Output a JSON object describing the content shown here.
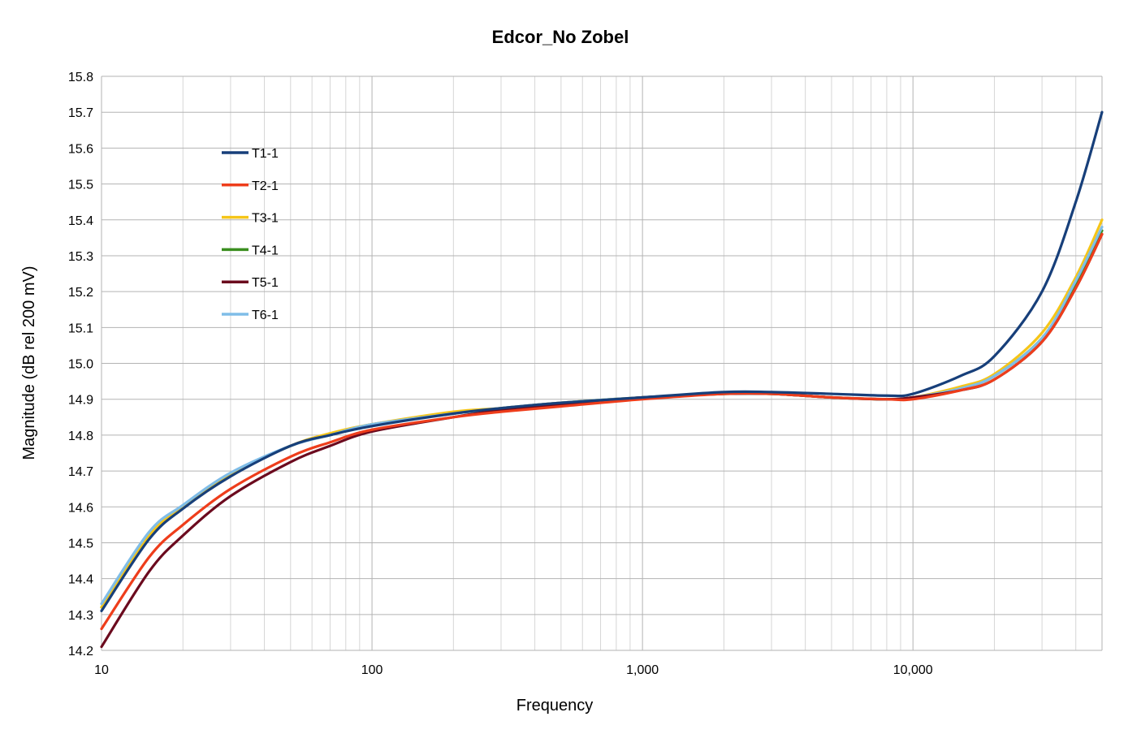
{
  "chart_data": {
    "type": "line",
    "title": "Edcor_No Zobel",
    "xlabel": "Frequency",
    "ylabel": "Magnitude (dB rel 200 mV)",
    "xscale": "log",
    "xlim": [
      10,
      50000
    ],
    "ylim": [
      14.2,
      15.8
    ],
    "x_ticks": [
      10,
      100,
      1000,
      10000
    ],
    "x_tick_labels": [
      "10",
      "100",
      "1,000",
      "10,000"
    ],
    "y_ticks": [
      14.2,
      14.3,
      14.4,
      14.5,
      14.6,
      14.7,
      14.8,
      14.9,
      15.0,
      15.1,
      15.2,
      15.3,
      15.4,
      15.5,
      15.6,
      15.7,
      15.8
    ],
    "y_tick_labels": [
      "14.2",
      "14.3",
      "14.4",
      "14.5",
      "14.6",
      "14.7",
      "14.8",
      "14.9",
      "15.0",
      "15.1",
      "15.2",
      "15.3",
      "15.4",
      "15.5",
      "15.6",
      "15.7",
      "15.8"
    ],
    "grid": true,
    "legend_position": "top-left",
    "x": [
      10,
      15,
      20,
      30,
      50,
      70,
      100,
      200,
      300,
      500,
      1000,
      2000,
      3000,
      5000,
      8000,
      10000,
      15000,
      20000,
      30000,
      40000,
      50000
    ],
    "series": [
      {
        "name": "T4-1",
        "color": "#3a8e1f",
        "values": [
          14.32,
          14.52,
          14.6,
          14.69,
          14.77,
          14.8,
          14.83,
          14.86,
          14.875,
          14.89,
          14.905,
          14.915,
          14.915,
          14.905,
          14.9,
          14.905,
          14.93,
          14.965,
          15.07,
          15.22,
          15.37
        ]
      },
      {
        "name": "T3-1",
        "color": "#f5c518",
        "values": [
          14.32,
          14.52,
          14.6,
          14.69,
          14.77,
          14.805,
          14.83,
          14.865,
          14.875,
          14.89,
          14.905,
          14.915,
          14.915,
          14.905,
          14.9,
          14.905,
          14.935,
          14.97,
          15.085,
          15.24,
          15.4
        ]
      },
      {
        "name": "T6-1",
        "color": "#7fbde8",
        "values": [
          14.33,
          14.53,
          14.605,
          14.695,
          14.77,
          14.8,
          14.83,
          14.86,
          14.875,
          14.89,
          14.905,
          14.915,
          14.915,
          14.905,
          14.9,
          14.905,
          14.93,
          14.965,
          15.07,
          15.23,
          15.38
        ]
      },
      {
        "name": "T5-1",
        "color": "#6b0a1e",
        "values": [
          14.21,
          14.42,
          14.52,
          14.63,
          14.725,
          14.77,
          14.81,
          14.85,
          14.87,
          14.885,
          14.905,
          14.915,
          14.915,
          14.905,
          14.9,
          14.905,
          14.925,
          14.955,
          15.06,
          15.21,
          15.36
        ]
      },
      {
        "name": "T2-1",
        "color": "#ee3d1b",
        "values": [
          14.26,
          14.46,
          14.55,
          14.65,
          14.74,
          14.78,
          14.815,
          14.85,
          14.865,
          14.88,
          14.9,
          14.915,
          14.915,
          14.905,
          14.9,
          14.9,
          14.925,
          14.955,
          15.06,
          15.21,
          15.36
        ]
      },
      {
        "name": "T1-1",
        "color": "#173f7a",
        "values": [
          14.31,
          14.51,
          14.595,
          14.685,
          14.77,
          14.8,
          14.825,
          14.86,
          14.875,
          14.89,
          14.905,
          14.92,
          14.92,
          14.915,
          14.91,
          14.915,
          14.965,
          15.02,
          15.2,
          15.45,
          15.7
        ]
      }
    ],
    "legend_order": [
      "T1-1",
      "T2-1",
      "T3-1",
      "T4-1",
      "T5-1",
      "T6-1"
    ]
  }
}
